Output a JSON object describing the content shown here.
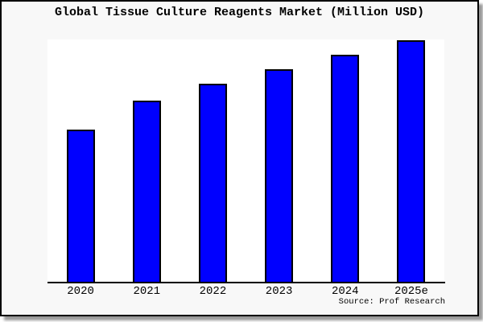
{
  "chart_data": {
    "type": "bar",
    "title": "Global Tissue Culture Reagents Market (Million USD)",
    "categories": [
      "2020",
      "2021",
      "2022",
      "2023",
      "2024",
      "2025e"
    ],
    "values": [
      63,
      75,
      82,
      88,
      94,
      100
    ],
    "values_unit": "relative bar height, % of 2025e bar (no numeric y-axis shown in chart)",
    "xlabel": "",
    "ylabel": "",
    "y_axis_ticks": "none",
    "grid": false,
    "legend": "none",
    "bar_fill_color": "#0000ff",
    "bar_border_color": "#000000",
    "plot_background": "#ffffff",
    "frame_background": "#f8f8f8",
    "source_note": "Source: Prof Research"
  }
}
